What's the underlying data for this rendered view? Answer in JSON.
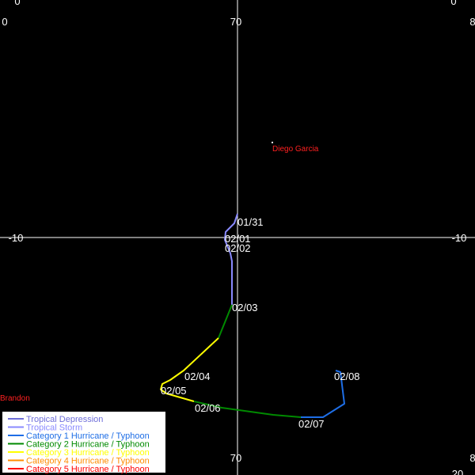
{
  "map_labels": {
    "top": [
      "0",
      "0",
      "70",
      "8",
      "0"
    ],
    "sides": [
      "-10",
      "-10"
    ],
    "bottom": [
      "70",
      "8",
      "20"
    ]
  },
  "places": [
    "Diego Garcia",
    "Brandon"
  ],
  "track_dates": [
    "01/31",
    "02/01",
    "02/02",
    "02/03",
    "02/04",
    "02/05",
    "02/06",
    "02/07",
    "02/08"
  ],
  "legend": [
    {
      "label": "Tropical Depression",
      "color": "#6f6fd9"
    },
    {
      "label": "Tropical Storm",
      "color": "#8a8aff"
    },
    {
      "label": "Category 1 Hurricane / Typhoon",
      "color": "#1e6ee6"
    },
    {
      "label": "Category 2 Hurricane / Typhoon",
      "color": "#008a00"
    },
    {
      "label": "Category 3 Hurricane / Typhoon",
      "color": "#ffff00"
    },
    {
      "label": "Category 4 Hurricane / Typhoon",
      "color": "#ff8c00"
    },
    {
      "label": "Category 5 Hurricane / Typhoon",
      "color": "#ff0000"
    }
  ]
}
